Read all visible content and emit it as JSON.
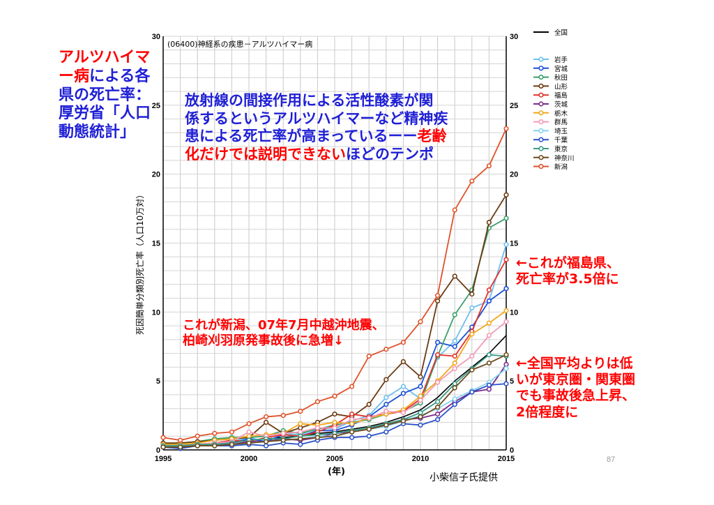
{
  "annotations": {
    "left_title": [
      {
        "text": "アルツハイマ",
        "color": "#ff0000"
      },
      {
        "text": "ー病による各",
        "color": "#ff0000|#1f1fd6"
      },
      {
        "text": "県の死亡率：",
        "color": "#1f1fd6"
      },
      {
        "text": "厚労省「人口",
        "color": "#1f1fd6"
      },
      {
        "text": "動態統計」",
        "color": "#1f1fd6"
      }
    ],
    "left_line1_red": "アルツハイマ",
    "left_line2_red": "ー病",
    "left_line2_blue": "による各",
    "left_line3": "県の死亡率：",
    "left_line4": "厚労省「人口",
    "left_line5": "動態統計」",
    "center_line1": "放射線の間接作用による活性酸素が関",
    "center_line2": "係するというアルツハイマーなど精神疾",
    "center_line3_blue": "患による死亡率が高まっているーー",
    "center_line3_red": "老齢",
    "center_line4_red1": "化だけでは説明できない",
    "center_line4_blue": "ほどのテンポ",
    "fukushima_line1": "←これが福島県、",
    "fukushima_line2": "死亡率が3.5倍に",
    "niigata_line1": "これが新潟、07年7月中越沖地震、",
    "niigata_line2": "柏崎刈羽原発事故後に急増↓",
    "national_line1": "←全国平均よりは低",
    "national_line2": "いが東京圏・関東圏",
    "national_line3": "でも事故後急上昇、",
    "national_line4": "2倍程度に"
  },
  "page_number": "87",
  "credit": "小柴信子氏提供",
  "chart_data": {
    "type": "line",
    "title": "(06400)神経系の疾患－アルツハイマー病",
    "xlabel": "(年)",
    "ylabel": "死因簡単分類別死亡率（人口10万対）",
    "xlim": [
      1995,
      2015
    ],
    "ylim": [
      0,
      30
    ],
    "x_ticks": [
      1995,
      2000,
      2005,
      2010,
      2015
    ],
    "y_ticks": [
      0,
      5,
      10,
      15,
      20,
      25,
      30
    ],
    "grid": true,
    "legend_position": "right",
    "x": [
      1995,
      1996,
      1997,
      1998,
      1999,
      2000,
      2001,
      2002,
      2003,
      2004,
      2005,
      2006,
      2007,
      2008,
      2009,
      2010,
      2011,
      2012,
      2013,
      2014,
      2015
    ],
    "series": [
      {
        "name": "全国",
        "color": "#000000",
        "marker": false,
        "values": [
          0.3,
          0.3,
          0.4,
          0.5,
          0.6,
          0.7,
          0.8,
          0.9,
          1.0,
          1.2,
          1.3,
          1.5,
          1.7,
          2.0,
          2.4,
          2.9,
          3.8,
          5.0,
          6.0,
          7.0,
          8.3
        ]
      },
      {
        "name": "岩手",
        "color": "#6cc0ee",
        "values": [
          0.2,
          0.3,
          0.3,
          0.4,
          0.6,
          0.9,
          0.6,
          1.2,
          1.1,
          1.6,
          1.5,
          2.1,
          2.5,
          3.8,
          4.6,
          3.7,
          6.7,
          7.9,
          10.3,
          10.8,
          14.9
        ]
      },
      {
        "name": "宮城",
        "color": "#1a4fd6",
        "values": [
          0.3,
          0.2,
          0.3,
          0.4,
          0.5,
          0.8,
          0.6,
          1.1,
          1.0,
          1.4,
          1.4,
          1.8,
          2.4,
          3.3,
          4.1,
          4.6,
          7.8,
          7.5,
          8.9,
          10.8,
          11.7
        ]
      },
      {
        "name": "秋田",
        "color": "#3aa06a",
        "values": [
          0.4,
          0.5,
          0.6,
          0.8,
          0.9,
          0.9,
          1.0,
          1.4,
          1.2,
          1.5,
          1.8,
          2.0,
          2.2,
          2.6,
          2.8,
          3.4,
          6.8,
          9.8,
          11.6,
          16.1,
          16.8
        ]
      },
      {
        "name": "山形",
        "color": "#6b3a12",
        "values": [
          0.5,
          0.5,
          0.6,
          0.7,
          0.8,
          0.9,
          2.0,
          1.2,
          1.6,
          2.0,
          2.6,
          2.4,
          3.3,
          5.1,
          6.4,
          5.3,
          10.8,
          12.6,
          11.3,
          16.5,
          18.5
        ]
      },
      {
        "name": "福島",
        "color": "#e4322b",
        "values": [
          0.3,
          0.2,
          0.4,
          0.5,
          0.7,
          0.6,
          0.9,
          1.1,
          1.0,
          1.3,
          1.8,
          2.6,
          2.4,
          2.6,
          2.8,
          3.7,
          6.9,
          6.8,
          8.6,
          11.6,
          13.8
        ]
      },
      {
        "name": "茨城",
        "color": "#7a2a8a",
        "values": [
          0.2,
          0.2,
          0.3,
          0.4,
          0.4,
          0.6,
          0.6,
          0.8,
          0.7,
          0.9,
          1.2,
          1.3,
          1.5,
          1.9,
          2.2,
          2.3,
          2.6,
          3.5,
          4.2,
          4.4,
          6.2
        ]
      },
      {
        "name": "栃木",
        "color": "#f2a81d",
        "values": [
          0.4,
          0.4,
          0.5,
          0.7,
          0.8,
          1.0,
          1.1,
          1.2,
          1.9,
          1.8,
          2.0,
          1.9,
          2.3,
          2.6,
          2.9,
          3.9,
          5.0,
          6.3,
          8.4,
          9.2,
          10.1
        ]
      },
      {
        "name": "群馬",
        "color": "#f39ab4",
        "values": [
          0.3,
          0.3,
          0.4,
          0.5,
          0.6,
          1.3,
          1.0,
          1.2,
          1.3,
          1.6,
          1.6,
          2.2,
          2.3,
          2.8,
          2.7,
          3.6,
          4.9,
          5.9,
          6.8,
          8.3,
          9.3
        ]
      },
      {
        "name": "埼玉",
        "color": "#87d3f0",
        "values": [
          0.2,
          0.2,
          0.3,
          0.3,
          0.4,
          0.5,
          0.6,
          0.7,
          0.8,
          1.0,
          1.0,
          1.3,
          1.5,
          1.7,
          2.1,
          2.5,
          3.0,
          3.7,
          4.3,
          4.9,
          5.9
        ]
      },
      {
        "name": "千葉",
        "color": "#2a50c8",
        "values": [
          0.2,
          0.1,
          0.3,
          0.3,
          0.3,
          0.4,
          0.3,
          0.5,
          0.4,
          0.7,
          0.9,
          0.9,
          1.0,
          1.3,
          1.9,
          1.8,
          2.2,
          3.3,
          4.2,
          4.7,
          4.8
        ]
      },
      {
        "name": "東京",
        "color": "#3a9a88",
        "values": [
          0.3,
          0.3,
          0.4,
          0.4,
          0.5,
          0.7,
          0.8,
          0.8,
          1.0,
          1.1,
          1.2,
          1.4,
          1.6,
          1.9,
          2.2,
          2.7,
          3.5,
          4.8,
          5.9,
          6.9,
          6.8
        ]
      },
      {
        "name": "神奈川",
        "color": "#6b4a1a",
        "values": [
          0.2,
          0.2,
          0.3,
          0.3,
          0.4,
          0.5,
          0.6,
          0.7,
          0.8,
          0.9,
          1.0,
          1.3,
          1.5,
          1.8,
          2.1,
          2.4,
          3.1,
          4.5,
          5.8,
          6.3,
          6.9
        ]
      },
      {
        "name": "新潟",
        "color": "#e0522a",
        "values": [
          0.9,
          0.7,
          1.0,
          1.2,
          1.3,
          1.9,
          2.4,
          2.5,
          2.8,
          3.5,
          3.9,
          4.6,
          6.8,
          7.3,
          7.8,
          9.3,
          11.2,
          17.4,
          19.5,
          20.6,
          23.3
        ]
      }
    ]
  }
}
